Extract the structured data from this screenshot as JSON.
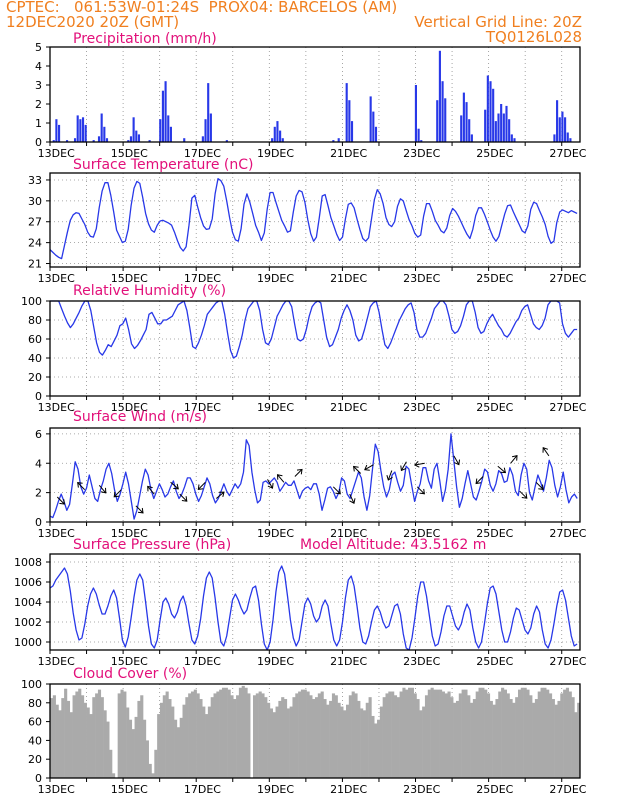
{
  "header": {
    "line1": "CPTEC:   061:53W-01:24S  PROX04: BARCELOS (AM)",
    "line2_left": "12DEC2020 20Z (GMT)",
    "line2_right": "Vertical Grid Line: 20Z",
    "line3_right": "TQ0126L028"
  },
  "colors": {
    "header": "#f07f1f",
    "title": "#e2107a",
    "series": "#2838e8",
    "cloud": "#aaaaaa",
    "grid": "#909090"
  },
  "x_axis": {
    "unit": "days since 12DEC 20Z (6h steps)",
    "tick_labels": [
      "13DEC",
      "15DEC",
      "17DEC",
      "19DEC",
      "21DEC",
      "23DEC",
      "25DEC",
      "27DEC"
    ]
  },
  "chart_data": [
    {
      "id": "precip",
      "type": "bar",
      "title": "Precipitation (mm/h)",
      "ylim": [
        0,
        5
      ],
      "yticks": [
        "0",
        "1",
        "2",
        "3",
        "4",
        "5"
      ],
      "values": [
        0,
        0.1,
        1.2,
        0.9,
        0,
        0,
        0.1,
        0,
        0,
        0.2,
        1.4,
        1.2,
        1.3,
        0.9,
        0,
        0,
        0.1,
        0,
        0.3,
        1.5,
        0.8,
        0.2,
        0,
        0,
        0,
        0,
        0,
        0,
        0,
        0.1,
        0.3,
        1.3,
        0.6,
        0.4,
        0,
        0,
        0,
        0.1,
        0,
        0,
        0,
        1.2,
        2.7,
        3.2,
        1.4,
        0.8,
        0,
        0,
        0,
        0,
        0.2,
        0,
        0,
        0,
        0,
        0,
        0,
        0.3,
        1.2,
        3.1,
        1.5,
        0,
        0,
        0,
        0,
        0,
        0.1,
        0,
        0,
        0,
        0,
        0,
        0,
        0,
        0,
        0,
        0,
        0,
        0,
        0,
        0,
        0,
        0,
        0.2,
        0.8,
        1.1,
        0.6,
        0.2,
        0,
        0,
        0,
        0,
        0,
        0,
        0,
        0,
        0,
        0,
        0,
        0,
        0,
        0,
        0,
        0,
        0,
        0,
        0.1,
        0,
        0.2,
        0,
        0,
        3.1,
        2.2,
        1.1,
        0,
        0,
        0,
        0,
        0,
        0,
        2.4,
        1.6,
        0.8,
        0,
        0,
        0,
        0,
        0,
        0,
        0,
        0,
        0,
        0,
        0,
        0,
        0,
        0,
        3.0,
        0.7,
        0.1,
        0,
        0,
        0,
        0,
        0,
        2.2,
        4.8,
        3.2,
        2.3,
        0,
        0,
        0,
        0,
        0,
        1.4,
        2.6,
        2.1,
        1.2,
        0.4,
        0,
        0,
        0,
        0,
        1.7,
        3.5,
        3.2,
        2.8,
        1.1,
        1.5,
        2.0,
        1.5,
        1.9,
        1.2,
        0.4,
        0.2,
        0,
        0,
        0,
        0,
        0,
        0,
        0,
        0,
        0,
        0,
        0,
        0,
        0,
        0,
        0.4,
        2.2,
        1.3,
        1.6,
        1.3,
        0.5,
        0.2,
        0,
        0,
        0
      ]
    },
    {
      "id": "temp",
      "type": "line",
      "title": "Surface Temperature (nC)",
      "ylim": [
        20.5,
        34
      ],
      "yticks": [
        "21",
        "24",
        "27",
        "30",
        "33"
      ],
      "values": [
        23.0,
        22.6,
        22.2,
        21.9,
        21.7,
        23.6,
        25.5,
        27.2,
        28.0,
        28.3,
        28.2,
        27.4,
        26.6,
        25.5,
        24.9,
        24.8,
        26.0,
        29.0,
        31.4,
        32.6,
        32.6,
        30.8,
        28.4,
        25.8,
        24.9,
        24.0,
        24.2,
        25.9,
        29.3,
        31.8,
        32.8,
        32.5,
        30.5,
        28.2,
        26.7,
        25.8,
        25.5,
        26.5,
        27.1,
        27.2,
        27.0,
        26.8,
        26.5,
        25.5,
        24.3,
        23.3,
        22.8,
        23.4,
        26.5,
        30.4,
        30.8,
        29.1,
        27.6,
        26.4,
        25.9,
        26.0,
        27.4,
        31.0,
        33.2,
        32.9,
        32.1,
        30.0,
        27.6,
        25.5,
        24.4,
        24.2,
        26.0,
        29.5,
        31.0,
        29.8,
        28.2,
        26.5,
        25.5,
        24.3,
        25.4,
        28.8,
        31.2,
        31.2,
        29.8,
        28.5,
        27.2,
        26.4,
        25.5,
        25.7,
        28.4,
        30.7,
        31.5,
        31.3,
        29.8,
        27.3,
        25.3,
        24.2,
        24.8,
        27.6,
        30.7,
        30.9,
        29.3,
        27.6,
        26.4,
        25.2,
        24.3,
        24.8,
        27.4,
        29.5,
        29.7,
        29.0,
        27.4,
        25.9,
        24.6,
        24.2,
        24.7,
        27.4,
        30.2,
        31.6,
        31.0,
        29.6,
        27.6,
        26.6,
        26.3,
        27.0,
        29.2,
        30.3,
        30.0,
        28.6,
        27.3,
        26.4,
        25.3,
        24.8,
        25.1,
        27.8,
        29.6,
        29.6,
        28.5,
        27.2,
        26.5,
        25.7,
        25.4,
        26.1,
        27.9,
        28.9,
        28.5,
        27.8,
        26.9,
        26.0,
        25.2,
        24.6,
        25.9,
        27.9,
        29.0,
        29.0,
        28.1,
        27.0,
        25.8,
        24.8,
        24.2,
        24.9,
        26.5,
        28.1,
        29.3,
        29.4,
        28.4,
        27.5,
        26.6,
        25.7,
        25.4,
        26.4,
        28.8,
        29.8,
        29.6,
        28.6,
        27.7,
        26.6,
        24.9,
        23.9,
        24.2,
        26.9,
        28.4,
        28.7,
        28.5,
        28.3,
        28.6,
        28.4,
        28.2
      ]
    },
    {
      "id": "rh",
      "type": "line",
      "title": "Relative Humidity (%)",
      "ylim": [
        0,
        100
      ],
      "yticks": [
        "0",
        "20",
        "40",
        "60",
        "80",
        "100"
      ],
      "values": [
        100,
        100,
        100,
        100,
        92,
        84,
        77,
        72,
        76,
        82,
        88,
        95,
        100,
        100,
        90,
        73,
        56,
        46,
        43,
        48,
        54,
        52,
        58,
        64,
        74,
        76,
        82,
        70,
        55,
        50,
        53,
        58,
        64,
        70,
        86,
        88,
        82,
        76,
        76,
        80,
        80,
        82,
        84,
        90,
        96,
        98,
        100,
        90,
        72,
        52,
        50,
        56,
        64,
        74,
        86,
        90,
        94,
        98,
        100,
        100,
        86,
        66,
        48,
        40,
        42,
        52,
        64,
        80,
        92,
        96,
        100,
        100,
        90,
        70,
        56,
        54,
        60,
        72,
        84,
        90,
        96,
        100,
        100,
        94,
        76,
        60,
        58,
        60,
        70,
        84,
        94,
        98,
        100,
        98,
        80,
        62,
        52,
        54,
        62,
        70,
        82,
        90,
        96,
        90,
        80,
        64,
        58,
        60,
        70,
        82,
        94,
        98,
        100,
        88,
        70,
        54,
        50,
        56,
        64,
        72,
        80,
        86,
        92,
        96,
        98,
        88,
        70,
        62,
        62,
        66,
        74,
        82,
        92,
        96,
        100,
        100,
        96,
        84,
        70,
        66,
        68,
        74,
        84,
        96,
        100,
        100,
        88,
        72,
        66,
        68,
        76,
        82,
        86,
        80,
        74,
        70,
        64,
        62,
        66,
        72,
        78,
        82,
        90,
        94,
        96,
        86,
        76,
        72,
        70,
        74,
        82,
        96,
        100,
        100,
        100,
        98,
        76,
        66,
        62,
        66,
        70,
        70
      ]
    },
    {
      "id": "wind",
      "type": "line",
      "title": "Surface Wind (m/s)",
      "ylim": [
        0,
        6.4
      ],
      "yticks": [
        "0",
        "2",
        "4",
        "6"
      ],
      "values": [
        0.4,
        0.3,
        0.8,
        1.4,
        1.9,
        1.4,
        0.8,
        1.2,
        2.6,
        4.1,
        3.6,
        2.4,
        1.9,
        2.3,
        3.2,
        2.4,
        1.6,
        1.4,
        2.2,
        2.8,
        3.6,
        4.0,
        3.3,
        2.2,
        1.4,
        1.9,
        2.6,
        3.4,
        2.6,
        1.4,
        0.2,
        0.8,
        1.8,
        2.8,
        3.6,
        3.2,
        2.2,
        1.6,
        2.1,
        2.6,
        2.2,
        1.7,
        1.9,
        2.4,
        2.8,
        2.1,
        1.6,
        1.9,
        2.4,
        3.0,
        3.0,
        2.6,
        1.9,
        1.4,
        1.8,
        2.4,
        3.0,
        2.6,
        1.8,
        1.3,
        1.6,
        2.1,
        2.6,
        2.1,
        1.8,
        2.2,
        2.6,
        2.3,
        2.6,
        3.4,
        5.6,
        5.2,
        3.4,
        2.2,
        1.3,
        1.5,
        2.7,
        2.8,
        2.6,
        2.8,
        3.0,
        2.7,
        2.1,
        2.4,
        2.7,
        2.5,
        2.5,
        2.8,
        2.2,
        1.6,
        2.1,
        2.3,
        2.4,
        2.2,
        2.6,
        2.6,
        1.9,
        0.8,
        1.5,
        2.3,
        2.4,
        2.1,
        1.6,
        2.0,
        3.0,
        2.8,
        1.9,
        1.6,
        2.2,
        2.8,
        3.4,
        3.0,
        1.7,
        0.8,
        1.8,
        3.6,
        5.3,
        4.8,
        3.5,
        2.4,
        1.7,
        2.2,
        3.2,
        3.4,
        2.7,
        2.1,
        2.5,
        3.8,
        3.6,
        2.5,
        1.4,
        2.1,
        2.6,
        3.7,
        3.7,
        2.8,
        2.3,
        3.6,
        4.0,
        2.8,
        1.4,
        2.2,
        3.6,
        6.0,
        4.2,
        2.4,
        1.0,
        1.6,
        2.6,
        3.5,
        2.6,
        1.7,
        1.5,
        2.1,
        2.8,
        3.6,
        3.4,
        2.5,
        2.1,
        2.6,
        3.5,
        3.3,
        2.7,
        2.8,
        3.7,
        3.2,
        2.1,
        1.8,
        3.2,
        4.0,
        3.6,
        2.0,
        1.5,
        2.4,
        3.2,
        2.7,
        2.1,
        3.0,
        4.2,
        3.7,
        2.5,
        1.7,
        2.4,
        3.4,
        2.2,
        1.3,
        1.7,
        1.9,
        1.6
      ],
      "arrows": [
        [
          0.2,
          315
        ],
        [
          0.95,
          135
        ],
        [
          1.35,
          310
        ],
        [
          1.95,
          225
        ],
        [
          2.35,
          315
        ],
        [
          2.85,
          130
        ],
        [
          3.3,
          320
        ],
        [
          3.55,
          315
        ],
        [
          4.25,
          225
        ],
        [
          4.55,
          40
        ],
        [
          5.95,
          300
        ],
        [
          6.4,
          130
        ],
        [
          6.7,
          45
        ],
        [
          7.75,
          315
        ],
        [
          8.2,
          295
        ],
        [
          8.5,
          135
        ],
        [
          8.85,
          210
        ],
        [
          9.35,
          250
        ],
        [
          9.75,
          240
        ],
        [
          10.05,
          315
        ],
        [
          10.25,
          190
        ],
        [
          11.05,
          300
        ],
        [
          11.85,
          225
        ],
        [
          12.25,
          320
        ],
        [
          12.6,
          50
        ],
        [
          12.85,
          315
        ],
        [
          13.3,
          315
        ],
        [
          13.65,
          125
        ]
      ]
    },
    {
      "id": "press",
      "type": "line",
      "title": "Surface Pressure (hPa)",
      "ylim": [
        999.2,
        1008.8
      ],
      "yticks": [
        "1000",
        "1002",
        "1004",
        "1006",
        "1008"
      ],
      "annotation": "Model Altitude: 43.5162 m",
      "values": [
        1005.4,
        1005.6,
        1006.2,
        1006.6,
        1007.0,
        1007.4,
        1006.8,
        1005.1,
        1002.9,
        1001.2,
        1000.2,
        1000.4,
        1001.8,
        1003.6,
        1004.8,
        1005.4,
        1004.8,
        1003.7,
        1002.8,
        1002.8,
        1003.6,
        1004.6,
        1005.2,
        1004.4,
        1002.4,
        1000.2,
        999.5,
        1000.5,
        1002.4,
        1004.5,
        1006.2,
        1006.8,
        1006.2,
        1004.0,
        1001.6,
        999.8,
        999.4,
        1000.2,
        1002.2,
        1004.0,
        1004.4,
        1003.8,
        1002.8,
        1002.4,
        1003.0,
        1004.1,
        1004.6,
        1003.6,
        1001.8,
        1000.2,
        999.8,
        1000.6,
        1002.3,
        1004.6,
        1006.4,
        1007.0,
        1006.4,
        1004.4,
        1002.0,
        1000.0,
        999.6,
        1000.6,
        1002.4,
        1004.2,
        1004.8,
        1004.2,
        1003.4,
        1002.8,
        1003.2,
        1004.4,
        1005.4,
        1005.6,
        1004.2,
        1001.8,
        999.8,
        999.2,
        1000.0,
        1002.2,
        1005.0,
        1007.0,
        1007.6,
        1006.8,
        1004.6,
        1002.2,
        1000.4,
        999.6,
        1000.2,
        1002.0,
        1003.8,
        1004.4,
        1003.8,
        1002.6,
        1002.0,
        1002.4,
        1003.6,
        1004.2,
        1003.6,
        1001.8,
        1000.2,
        999.6,
        1000.2,
        1002.0,
        1004.4,
        1006.2,
        1006.6,
        1005.6,
        1003.6,
        1001.4,
        1000.0,
        999.8,
        1000.6,
        1002.0,
        1003.2,
        1003.6,
        1003.0,
        1002.0,
        1001.4,
        1001.6,
        1002.6,
        1003.6,
        1003.8,
        1002.8,
        1000.8,
        999.4,
        999.2,
        1000.4,
        1002.4,
        1004.6,
        1006.0,
        1006.0,
        1004.6,
        1002.6,
        1000.6,
        999.6,
        999.8,
        1001.0,
        1002.6,
        1003.6,
        1003.6,
        1002.6,
        1001.6,
        1001.2,
        1001.8,
        1003.0,
        1003.8,
        1003.2,
        1001.4,
        1000.0,
        999.4,
        1000.0,
        1001.8,
        1003.8,
        1005.4,
        1005.6,
        1004.8,
        1003.0,
        1001.2,
        1000.0,
        1000.0,
        1001.0,
        1002.4,
        1003.4,
        1003.2,
        1002.2,
        1001.2,
        1000.8,
        1001.4,
        1002.8,
        1003.6,
        1003.0,
        1001.2,
        999.8,
        999.4,
        1000.2,
        1001.8,
        1003.6,
        1005.0,
        1005.2,
        1004.2,
        1002.4,
        1000.6,
        999.6,
        999.8
      ]
    },
    {
      "id": "cloud",
      "type": "bar",
      "title": "Cloud Cover (%)",
      "ylim": [
        0,
        100
      ],
      "yticks": [
        "0",
        "20",
        "40",
        "60",
        "80",
        "100"
      ],
      "values": [
        85,
        88,
        78,
        72,
        85,
        95,
        82,
        70,
        88,
        92,
        95,
        88,
        80,
        75,
        68,
        86,
        90,
        94,
        86,
        72,
        60,
        30,
        5,
        0,
        90,
        94,
        92,
        75,
        62,
        52,
        65,
        82,
        88,
        62,
        40,
        15,
        5,
        30,
        68,
        80,
        88,
        92,
        84,
        76,
        62,
        54,
        64,
        78,
        86,
        90,
        92,
        94,
        90,
        84,
        76,
        68,
        76,
        86,
        90,
        92,
        94,
        96,
        96,
        94,
        88,
        84,
        88,
        96,
        98,
        96,
        90,
        0,
        88,
        90,
        92,
        90,
        86,
        80,
        74,
        70,
        76,
        82,
        86,
        84,
        74,
        76,
        86,
        90,
        92,
        94,
        94,
        92,
        88,
        84,
        86,
        90,
        92,
        84,
        78,
        82,
        90,
        88,
        80,
        76,
        72,
        78,
        88,
        92,
        90,
        82,
        74,
        72,
        80,
        86,
        66,
        58,
        62,
        76,
        86,
        90,
        92,
        92,
        88,
        86,
        92,
        96,
        94,
        96,
        96,
        90,
        84,
        72,
        76,
        88,
        94,
        96,
        94,
        94,
        94,
        92,
        90,
        92,
        86,
        80,
        82,
        90,
        94,
        94,
        88,
        80,
        84,
        92,
        96,
        96,
        94,
        90,
        82,
        78,
        84,
        92,
        96,
        94,
        90,
        84,
        80,
        86,
        94,
        96,
        96,
        94,
        88,
        80,
        84,
        92,
        96,
        96,
        94,
        90,
        84,
        78,
        82,
        90,
        94,
        96,
        92,
        86,
        70,
        80
      ]
    }
  ]
}
